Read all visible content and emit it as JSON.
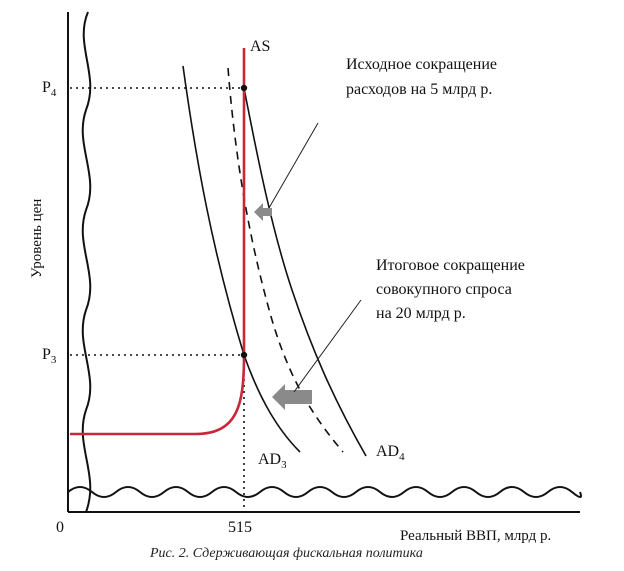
{
  "figure": {
    "labels": {
      "as": "AS",
      "ad3": "AD",
      "ad3_sub": "3",
      "ad4": "AD",
      "ad4_sub": "4",
      "p4": "P",
      "p4_sub": "4",
      "p3": "P",
      "p3_sub": "3",
      "origin": "0",
      "x_tick": "515",
      "y_axis": "Уровень цен",
      "x_axis": "Реальный ВВП, млрд р."
    },
    "annotations": {
      "initial_line1": "Исходное сокращение",
      "initial_line2": "расходов на 5 млрд р.",
      "final_line1": "Итоговое сокращение",
      "final_line2": "совокупного спроса",
      "final_line3": "на 20 млрд р."
    },
    "caption": "Рис. 2. Сдерживающая фискальная политика",
    "colors": {
      "as_curve": "#c8283a",
      "shift_arrow": "#8a8a8a"
    }
  }
}
